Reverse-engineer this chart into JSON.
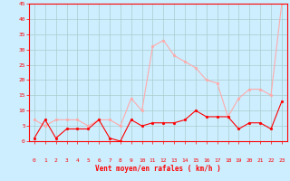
{
  "x": [
    0,
    1,
    2,
    3,
    4,
    5,
    6,
    7,
    8,
    9,
    10,
    11,
    12,
    13,
    14,
    15,
    16,
    17,
    18,
    19,
    20,
    21,
    22,
    23
  ],
  "wind_avg": [
    1,
    7,
    1,
    4,
    4,
    4,
    7,
    1,
    0,
    7,
    5,
    6,
    6,
    6,
    7,
    10,
    8,
    8,
    8,
    4,
    6,
    6,
    4,
    13
  ],
  "wind_gust": [
    7,
    5,
    7,
    7,
    7,
    5,
    7,
    7,
    5,
    14,
    10,
    31,
    33,
    28,
    26,
    24,
    20,
    19,
    8,
    14,
    17,
    17,
    15,
    45
  ],
  "line_avg_color": "#ff0000",
  "line_gust_color": "#ffaaaa",
  "bg_color": "#cceeff",
  "grid_color": "#aacccc",
  "xlabel": "Vent moyen/en rafales ( km/h )",
  "xlabel_color": "#ff0000",
  "tick_color": "#ff0000",
  "spine_color": "#ff0000",
  "ylim": [
    0,
    45
  ],
  "yticks": [
    0,
    5,
    10,
    15,
    20,
    25,
    30,
    35,
    40,
    45
  ],
  "xlim": [
    -0.5,
    23.5
  ],
  "marker_size": 2.0,
  "line_width": 0.8
}
